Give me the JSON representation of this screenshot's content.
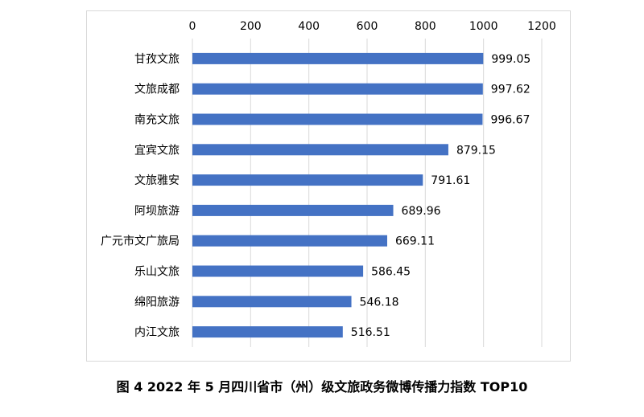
{
  "caption": "图 4 2022 年 5 月四川省市（州）级文旅政务微博传播力指数 TOP10",
  "colors": {
    "bar": "#4472C4",
    "grid": "#d9d9d9",
    "text": "#000000"
  },
  "chart_data": {
    "type": "bar",
    "orientation": "horizontal",
    "title": "",
    "xlabel": "",
    "ylabel": "",
    "xlim": [
      0,
      1200
    ],
    "x_ticks": [
      0,
      200,
      400,
      600,
      800,
      1000,
      1200
    ],
    "x_axis_position": "top",
    "grid": true,
    "legend": "none",
    "categories": [
      "甘孜文旅",
      "文旅成都",
      "南充文旅",
      "宜宾文旅",
      "文旅雅安",
      "阿坝旅游",
      "广元市文广旅局",
      "乐山文旅",
      "绵阳旅游",
      "内江文旅"
    ],
    "values": [
      999.05,
      997.62,
      996.67,
      879.15,
      791.61,
      689.96,
      669.11,
      586.45,
      546.18,
      516.51
    ],
    "data_labels": [
      "999.05",
      "997.62",
      "996.67",
      "879.15",
      "791.61",
      "689.96",
      "669.11",
      "586.45",
      "546.18",
      "516.51"
    ]
  }
}
